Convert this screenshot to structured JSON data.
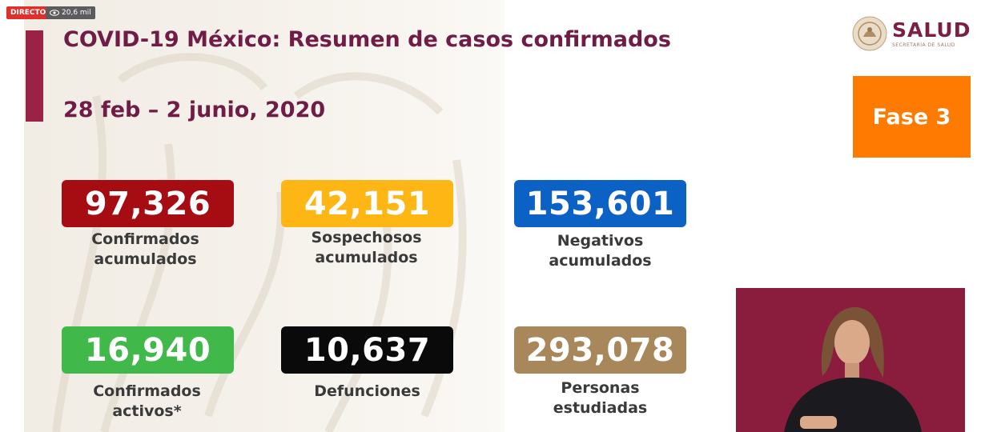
{
  "stream": {
    "live_label": "DIRECTO",
    "viewers": "20,6 mil"
  },
  "header": {
    "title": "COVID-19 México: Resumen de casos confirmados",
    "date_range": "28 feb – 2 junio, 2020"
  },
  "logo": {
    "name": "SALUD",
    "subtitle": "SECRETARÍA DE SALUD"
  },
  "phase": {
    "label": "Fase 3"
  },
  "stats": [
    {
      "value": "97,326",
      "label_line1": "Confirmados",
      "label_line2": "acumulados",
      "color": "#a50d12"
    },
    {
      "value": "42,151",
      "label_line1": "Sospechosos",
      "label_line2": "acumulados",
      "color": "#fdb614"
    },
    {
      "value": "153,601",
      "label_line1": "Negativos",
      "label_line2": "acumulados",
      "color": "#0c62c4"
    },
    {
      "value": "16,940",
      "label_line1": "Confirmados",
      "label_line2": "activos*",
      "color": "#40b84a"
    },
    {
      "value": "10,637",
      "label_line1": "Defunciones",
      "label_line2": "",
      "color": "#0a0a0a"
    },
    {
      "value": "293,078",
      "label_line1": "Personas",
      "label_line2": "estudiadas",
      "color": "#a8875a"
    }
  ],
  "colors": {
    "accent": "#9b2247",
    "title": "#6f1d46",
    "phase": "#ff7a00",
    "interpreter_bg": "#8a1d3e"
  }
}
